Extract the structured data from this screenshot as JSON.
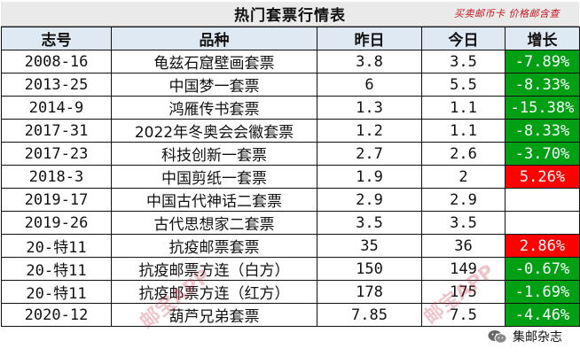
{
  "title": "热门套票行情表",
  "stamp_text": "买卖邮币卡 价格邮含查",
  "headers": [
    "志号",
    "品种",
    "昨日",
    "今日",
    "增长"
  ],
  "rows": [
    {
      "id": "2008-16",
      "name": "龟兹石窟壁画套票",
      "yesterday": "3.8",
      "today": "3.5",
      "change": "-7.89%",
      "trend": "down"
    },
    {
      "id": "2013-25",
      "name": "中国梦一套票",
      "yesterday": "6",
      "today": "5.5",
      "change": "-8.33%",
      "trend": "down"
    },
    {
      "id": "2014-9",
      "name": "鸿雁传书套票",
      "yesterday": "1.3",
      "today": "1.1",
      "change": "-15.38%",
      "trend": "down"
    },
    {
      "id": "2017-31",
      "name": "2022年冬奥会会徽套票",
      "yesterday": "1.2",
      "today": "1.1",
      "change": "-8.33%",
      "trend": "down"
    },
    {
      "id": "2017-23",
      "name": "科技创新一套票",
      "yesterday": "2.7",
      "today": "2.6",
      "change": "-3.70%",
      "trend": "down"
    },
    {
      "id": "2018-3",
      "name": "中国剪纸一套票",
      "yesterday": "1.9",
      "today": "2",
      "change": "5.26%",
      "trend": "up"
    },
    {
      "id": "2019-17",
      "name": "中国古代神话二套票",
      "yesterday": "2.9",
      "today": "2.9",
      "change": "",
      "trend": "none"
    },
    {
      "id": "2019-26",
      "name": "古代思想家二套票",
      "yesterday": "3.5",
      "today": "3.5",
      "change": "",
      "trend": "none"
    },
    {
      "id": "20-特11",
      "name": "抗疫邮票套票",
      "yesterday": "35",
      "today": "36",
      "change": "2.86%",
      "trend": "up"
    },
    {
      "id": "20-特11",
      "name": "抗疫邮票方连（白方）",
      "yesterday": "150",
      "today": "149",
      "change": "-0.67%",
      "trend": "down"
    },
    {
      "id": "20-特11",
      "name": "抗疫邮票方连（红方）",
      "yesterday": "178",
      "today": "175",
      "change": "-1.69%",
      "trend": "down"
    },
    {
      "id": "2020-12",
      "name": "葫芦兄弟套票",
      "yesterday": "7.85",
      "today": "7.5",
      "change": "-4.46%",
      "trend": "down"
    }
  ],
  "watermarks": [
    "邮宝APP",
    "邮宝APP"
  ],
  "wechat": {
    "icon": "wechat-icon",
    "label": "集邮杂志"
  },
  "colors": {
    "down": "#00a014",
    "up": "#ff0000",
    "header": "#dfe9f3",
    "title_bg": "#eaeaea"
  }
}
